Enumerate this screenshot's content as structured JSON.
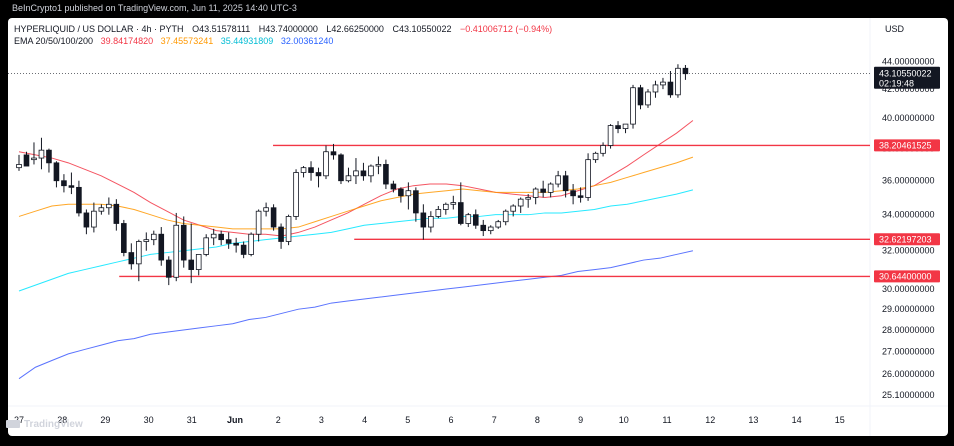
{
  "header": {
    "publish_line": "BeInCrypto1 published on TradingView.com, Jun 11, 2025 14:40 UTC-3",
    "symbol": "HYPERLIQUID / US DOLLAR · 4h · PYTH",
    "ohlc": {
      "o": "O43.51578111",
      "h": "H43.74000000",
      "l": "L42.66250000",
      "c": "C43.10550022"
    },
    "change": "−0.41006712 (−0.94%)",
    "ema_label": "EMA 20/50/100/200",
    "ema_values": [
      {
        "value": "39.84174820",
        "color": "#f23645"
      },
      {
        "value": "37.45573241",
        "color": "#ff9800"
      },
      {
        "value": "35.44931809",
        "color": "#00bcd4"
      },
      {
        "value": "32.00361240",
        "color": "#2962ff"
      }
    ],
    "currency": "USD"
  },
  "footer": {
    "logo_text": "TradingView"
  },
  "colors": {
    "up": "#131722",
    "down": "#131722",
    "support": "#f23645"
  },
  "chart_data": {
    "type": "candlestick",
    "timeframe": "4h",
    "y_ticks": [
      44,
      42,
      40,
      38,
      36,
      34,
      32,
      30,
      29,
      28,
      27,
      26,
      25.1
    ],
    "y_tick_labels": [
      "44.00000000",
      "42.00000000",
      "40.00000000",
      "38.00000000",
      "36.00000000",
      "34.00000000",
      "32.00000000",
      "30.00000000",
      "29.00000000",
      "28.00000000",
      "27.00000000",
      "26.00000000",
      "25.10000000"
    ],
    "y_scale": "log",
    "x_ticks": [
      {
        "label": "27",
        "day": 0
      },
      {
        "label": "28",
        "day": 1
      },
      {
        "label": "29",
        "day": 2
      },
      {
        "label": "30",
        "day": 3
      },
      {
        "label": "31",
        "day": 4
      },
      {
        "label": "Jun",
        "day": 5
      },
      {
        "label": "2",
        "day": 6
      },
      {
        "label": "3",
        "day": 7
      },
      {
        "label": "4",
        "day": 8
      },
      {
        "label": "5",
        "day": 9
      },
      {
        "label": "6",
        "day": 10
      },
      {
        "label": "7",
        "day": 11
      },
      {
        "label": "8",
        "day": 12
      },
      {
        "label": "9",
        "day": 13
      },
      {
        "label": "10",
        "day": 14
      },
      {
        "label": "11",
        "day": 15
      },
      {
        "label": "12",
        "day": 16
      },
      {
        "label": "13",
        "day": 17
      },
      {
        "label": "14",
        "day": 18
      },
      {
        "label": "15",
        "day": 19
      }
    ],
    "candles": [
      [
        36.8,
        37.6,
        37.0,
        36.6
      ],
      [
        37.6,
        37.8,
        36.9,
        37.3
      ],
      [
        37.3,
        38.4,
        37.4,
        37.0
      ],
      [
        37.4,
        38.7,
        37.9,
        36.7
      ],
      [
        37.9,
        38.0,
        37.1,
        36.5
      ],
      [
        37.1,
        37.2,
        36.0,
        35.6
      ],
      [
        36.0,
        36.4,
        35.7,
        35.3
      ],
      [
        35.7,
        36.5,
        35.6,
        35.2
      ],
      [
        35.6,
        36.0,
        34.1,
        33.9
      ],
      [
        34.1,
        34.3,
        33.3,
        32.9
      ],
      [
        33.3,
        34.7,
        34.2,
        33.0
      ],
      [
        34.2,
        34.6,
        34.4,
        34.0
      ],
      [
        34.4,
        35.0,
        34.6,
        34.0
      ],
      [
        34.6,
        34.9,
        33.5,
        33.1
      ],
      [
        33.5,
        33.7,
        31.9,
        31.7
      ],
      [
        31.9,
        32.4,
        31.3,
        31.0
      ],
      [
        31.3,
        32.6,
        32.5,
        30.4
      ],
      [
        32.5,
        33.0,
        32.6,
        32.0
      ],
      [
        32.6,
        33.1,
        32.9,
        32.3
      ],
      [
        32.9,
        33.3,
        31.5,
        31.2
      ],
      [
        31.5,
        31.7,
        30.6,
        30.2
      ],
      [
        30.6,
        34.1,
        33.4,
        30.4
      ],
      [
        33.4,
        33.9,
        31.5,
        31.1
      ],
      [
        31.5,
        33.5,
        31.0,
        30.3
      ],
      [
        31.0,
        31.7,
        31.8,
        30.7
      ],
      [
        31.8,
        32.9,
        32.7,
        31.7
      ],
      [
        32.7,
        33.2,
        32.9,
        32.3
      ],
      [
        32.9,
        33.1,
        32.6,
        32.3
      ],
      [
        32.6,
        33.0,
        32.4,
        32.1
      ],
      [
        32.4,
        32.7,
        32.3,
        31.9
      ],
      [
        32.3,
        32.5,
        31.8,
        31.6
      ],
      [
        31.8,
        33.0,
        32.9,
        31.7
      ],
      [
        32.9,
        34.3,
        34.2,
        32.5
      ],
      [
        34.2,
        34.7,
        34.4,
        33.9
      ],
      [
        34.4,
        34.6,
        33.3,
        33.1
      ],
      [
        33.3,
        33.5,
        32.5,
        32.1
      ],
      [
        32.5,
        34.0,
        33.9,
        32.3
      ],
      [
        33.9,
        36.7,
        36.5,
        33.7
      ],
      [
        36.5,
        36.9,
        36.8,
        36.2
      ],
      [
        36.8,
        37.2,
        36.5,
        36.0
      ],
      [
        36.5,
        36.8,
        36.3,
        35.6
      ],
      [
        36.3,
        38.2,
        37.8,
        36.1
      ],
      [
        37.8,
        38.3,
        37.6,
        37.3
      ],
      [
        37.6,
        37.7,
        36.0,
        35.8
      ],
      [
        36.0,
        36.8,
        36.3,
        35.9
      ],
      [
        36.3,
        37.4,
        36.6,
        35.8
      ],
      [
        36.6,
        37.1,
        36.3,
        36.0
      ],
      [
        36.3,
        37.0,
        36.9,
        35.9
      ],
      [
        36.9,
        37.5,
        37.0,
        36.4
      ],
      [
        37.0,
        37.3,
        35.8,
        35.5
      ],
      [
        35.8,
        36.0,
        35.5,
        35.3
      ],
      [
        35.5,
        35.6,
        35.1,
        34.7
      ],
      [
        35.1,
        35.9,
        35.4,
        34.3
      ],
      [
        35.4,
        35.6,
        34.1,
        33.6
      ],
      [
        34.1,
        34.6,
        33.3,
        32.6
      ],
      [
        33.3,
        34.2,
        33.9,
        33.0
      ],
      [
        33.9,
        34.5,
        34.3,
        33.8
      ],
      [
        34.3,
        34.7,
        34.6,
        34.0
      ],
      [
        34.6,
        35.1,
        34.7,
        34.3
      ],
      [
        34.7,
        35.9,
        33.5,
        33.4
      ],
      [
        33.5,
        34.1,
        34.0,
        33.3
      ],
      [
        34.0,
        34.3,
        33.4,
        33.2
      ],
      [
        33.4,
        33.7,
        33.1,
        32.8
      ],
      [
        33.1,
        33.4,
        33.3,
        32.9
      ],
      [
        33.3,
        33.7,
        33.6,
        33.2
      ],
      [
        33.6,
        34.3,
        34.2,
        33.4
      ],
      [
        34.2,
        34.6,
        34.5,
        33.9
      ],
      [
        34.5,
        35.0,
        34.9,
        34.1
      ],
      [
        34.9,
        35.2,
        35.0,
        34.4
      ],
      [
        35.0,
        35.6,
        35.5,
        34.6
      ],
      [
        35.5,
        36.0,
        35.3,
        35.0
      ],
      [
        35.3,
        35.9,
        35.8,
        35.0
      ],
      [
        35.8,
        36.6,
        36.3,
        35.6
      ],
      [
        36.3,
        36.6,
        35.4,
        35.0
      ],
      [
        35.4,
        35.8,
        35.1,
        34.6
      ],
      [
        35.1,
        35.6,
        35.0,
        34.7
      ],
      [
        35.0,
        37.7,
        37.3,
        34.8
      ],
      [
        37.3,
        37.8,
        37.7,
        37.1
      ],
      [
        37.7,
        38.4,
        38.2,
        37.5
      ],
      [
        38.2,
        39.6,
        39.5,
        38.0
      ],
      [
        39.5,
        39.8,
        39.3,
        39.0
      ],
      [
        39.3,
        39.5,
        39.6,
        39.0
      ],
      [
        39.6,
        42.3,
        42.1,
        39.3
      ],
      [
        42.1,
        42.3,
        40.9,
        40.6
      ],
      [
        40.9,
        42.0,
        41.8,
        40.7
      ],
      [
        41.8,
        42.6,
        42.3,
        41.4
      ],
      [
        42.3,
        42.8,
        42.5,
        42.0
      ],
      [
        42.5,
        43.3,
        41.6,
        41.4
      ],
      [
        41.6,
        43.8,
        43.5,
        41.4
      ],
      [
        43.5,
        43.74,
        43.1055,
        42.66
      ]
    ],
    "ema": {
      "ema20": [
        37.8,
        37.6,
        37.4,
        37.1,
        36.7,
        36.3,
        35.8,
        35.3,
        34.7,
        34.2,
        33.7,
        33.4,
        33.1,
        33.0,
        32.9,
        32.9,
        32.8,
        33.0,
        33.3,
        33.7,
        34.1,
        34.6,
        35.1,
        35.5,
        35.7,
        35.8,
        35.8,
        35.7,
        35.5,
        35.3,
        35.2,
        35.1,
        35.0,
        35.1,
        35.4,
        35.7,
        36.3,
        36.9,
        37.6,
        38.3,
        39.0,
        39.84
      ],
      "ema50": [
        33.9,
        34.2,
        34.5,
        34.6,
        34.6,
        34.6,
        34.5,
        34.3,
        34.0,
        33.7,
        33.5,
        33.4,
        33.3,
        33.2,
        33.2,
        33.2,
        33.2,
        33.3,
        33.6,
        33.9,
        34.2,
        34.5,
        34.8,
        35.0,
        35.2,
        35.3,
        35.4,
        35.5,
        35.4,
        35.3,
        35.3,
        35.3,
        35.3,
        35.4,
        35.5,
        35.7,
        35.9,
        36.2,
        36.5,
        36.8,
        37.1,
        37.46
      ],
      "ema100": [
        29.9,
        30.2,
        30.5,
        30.8,
        31.0,
        31.2,
        31.4,
        31.6,
        31.8,
        31.9,
        32.0,
        32.1,
        32.2,
        32.4,
        32.5,
        32.6,
        32.7,
        32.8,
        32.9,
        33.0,
        33.2,
        33.4,
        33.5,
        33.6,
        33.7,
        33.8,
        33.8,
        33.9,
        33.9,
        34.0,
        34.0,
        34.0,
        34.1,
        34.1,
        34.2,
        34.3,
        34.5,
        34.6,
        34.8,
        35.0,
        35.2,
        35.45
      ],
      "ema200": [
        25.8,
        26.3,
        26.6,
        26.9,
        27.1,
        27.3,
        27.5,
        27.6,
        27.8,
        27.9,
        28.0,
        28.1,
        28.2,
        28.3,
        28.5,
        28.6,
        28.8,
        29.0,
        29.1,
        29.3,
        29.4,
        29.5,
        29.6,
        29.7,
        29.8,
        29.9,
        30.0,
        30.1,
        30.2,
        30.3,
        30.4,
        30.5,
        30.6,
        30.7,
        30.9,
        31.0,
        31.1,
        31.3,
        31.5,
        31.6,
        31.8,
        32.0
      ]
    },
    "ema_days": [
      0,
      0.5,
      1,
      1.5,
      2,
      2.5,
      3,
      3.5,
      4,
      4.5,
      5,
      5.5,
      6,
      6.5,
      7,
      7.5,
      8,
      8.5,
      9,
      9.5,
      10,
      10.5,
      11,
      11.5,
      12,
      12.5,
      13,
      13.5,
      14,
      14.5,
      15,
      15.5,
      16,
      16.5,
      17,
      17.5,
      18,
      18.5,
      19,
      19.5,
      20,
      20.5
    ],
    "levels": [
      {
        "value": 38.20461525,
        "label": "38.20461525",
        "from_day": 7.35
      },
      {
        "value": 32.62197203,
        "label": "32.62197203",
        "from_day": 9.7
      },
      {
        "value": 30.644,
        "label": "30.64400000",
        "from_day": 2.9
      }
    ],
    "last_price": {
      "label": "43.10550022",
      "countdown": "02:19:48",
      "value": 43.1055
    }
  }
}
